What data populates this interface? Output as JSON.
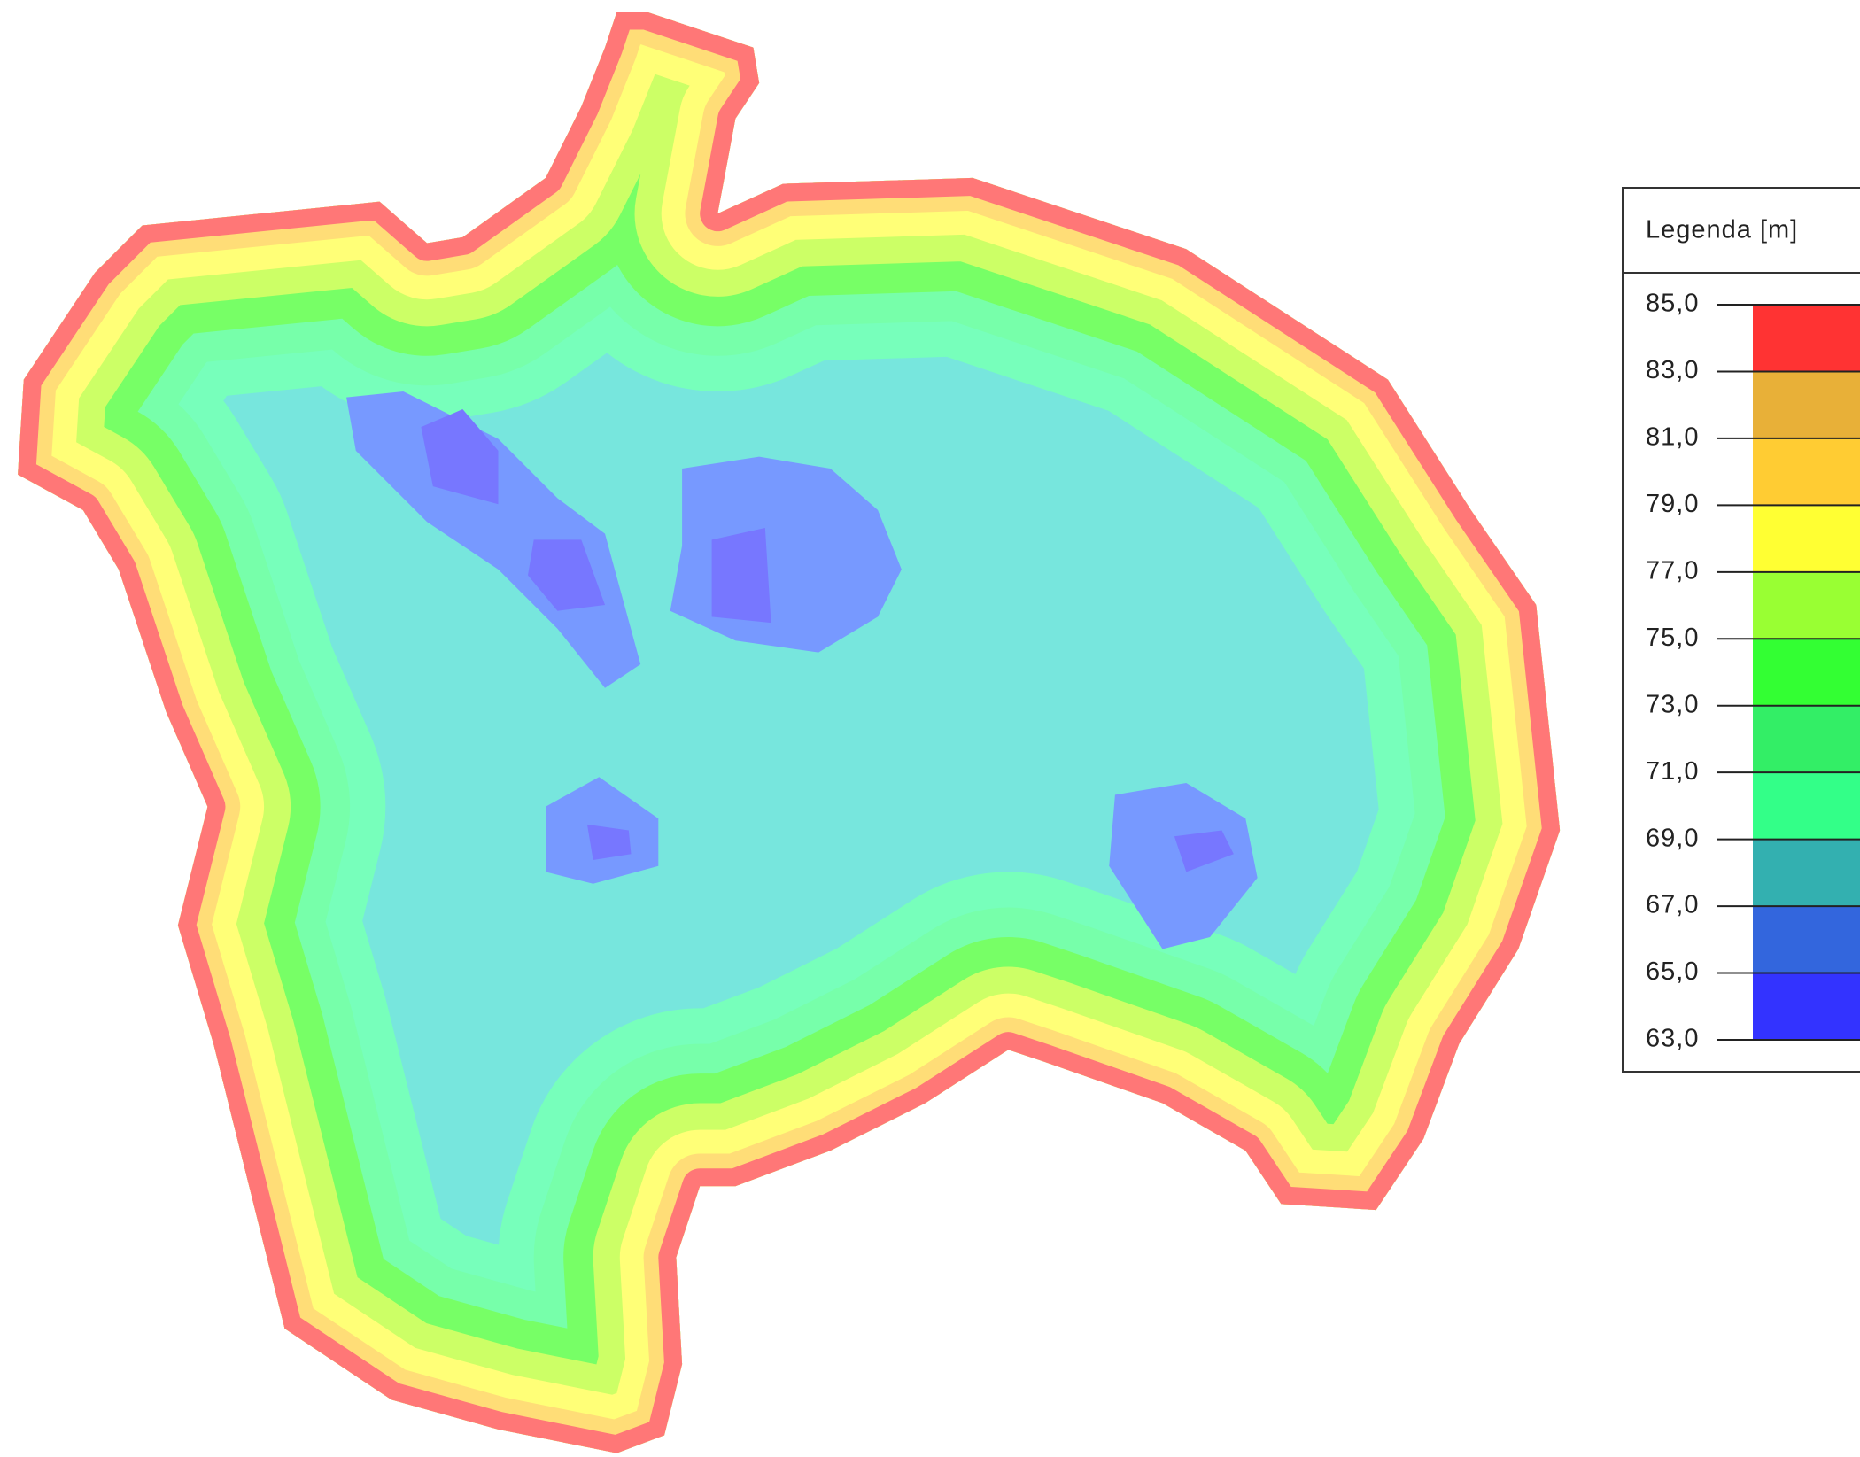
{
  "legend": {
    "title": "Legenda [m]",
    "ticks": [
      {
        "value": 85,
        "label": "85,0"
      },
      {
        "value": 83,
        "label": "83,0"
      },
      {
        "value": 81,
        "label": "81,0"
      },
      {
        "value": 79,
        "label": "79,0"
      },
      {
        "value": 77,
        "label": "77,0"
      },
      {
        "value": 75,
        "label": "75,0"
      },
      {
        "value": 73,
        "label": "73,0"
      },
      {
        "value": 71,
        "label": "71,0"
      },
      {
        "value": 69,
        "label": "69,0"
      },
      {
        "value": 67,
        "label": "67,0"
      },
      {
        "value": 65,
        "label": "65,0"
      },
      {
        "value": 63,
        "label": "63,0"
      }
    ],
    "colors": [
      "#ff3333",
      "#e8b038",
      "#ffcc33",
      "#ffff33",
      "#99ff33",
      "#33ff33",
      "#33ee66",
      "#33ff88",
      "#33b0b0",
      "#3366dd",
      "#3333ff"
    ]
  }
}
